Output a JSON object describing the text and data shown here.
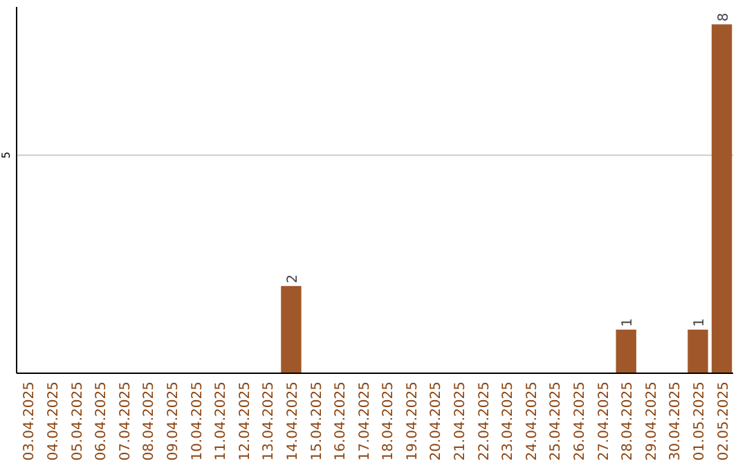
{
  "chart_data": {
    "type": "bar",
    "categories": [
      "03.04.2025",
      "04.04.2025",
      "05.04.2025",
      "06.04.2025",
      "07.04.2025",
      "08.04.2025",
      "09.04.2025",
      "10.04.2025",
      "11.04.2025",
      "12.04.2025",
      "13.04.2025",
      "14.04.2025",
      "15.04.2025",
      "16.04.2025",
      "17.04.2025",
      "18.04.2025",
      "19.04.2025",
      "20.04.2025",
      "21.04.2025",
      "22.04.2025",
      "23.04.2025",
      "24.04.2025",
      "25.04.2025",
      "26.04.2025",
      "27.04.2025",
      "28.04.2025",
      "29.04.2025",
      "30.04.2025",
      "01.05.2025",
      "02.05.2025"
    ],
    "values": [
      0,
      0,
      0,
      0,
      0,
      0,
      0,
      0,
      0,
      0,
      0,
      2,
      0,
      0,
      0,
      0,
      0,
      0,
      0,
      0,
      0,
      0,
      0,
      0,
      0,
      1,
      0,
      0,
      1,
      8
    ],
    "value_labels": [
      null,
      null,
      null,
      null,
      null,
      null,
      null,
      null,
      null,
      null,
      null,
      "2",
      null,
      null,
      null,
      null,
      null,
      null,
      null,
      null,
      null,
      null,
      null,
      null,
      null,
      "1",
      null,
      null,
      "1",
      "8"
    ],
    "color": "#a0582a",
    "ylim": [
      0,
      8.4
    ],
    "yticks": [
      5
    ],
    "grid": "y"
  }
}
